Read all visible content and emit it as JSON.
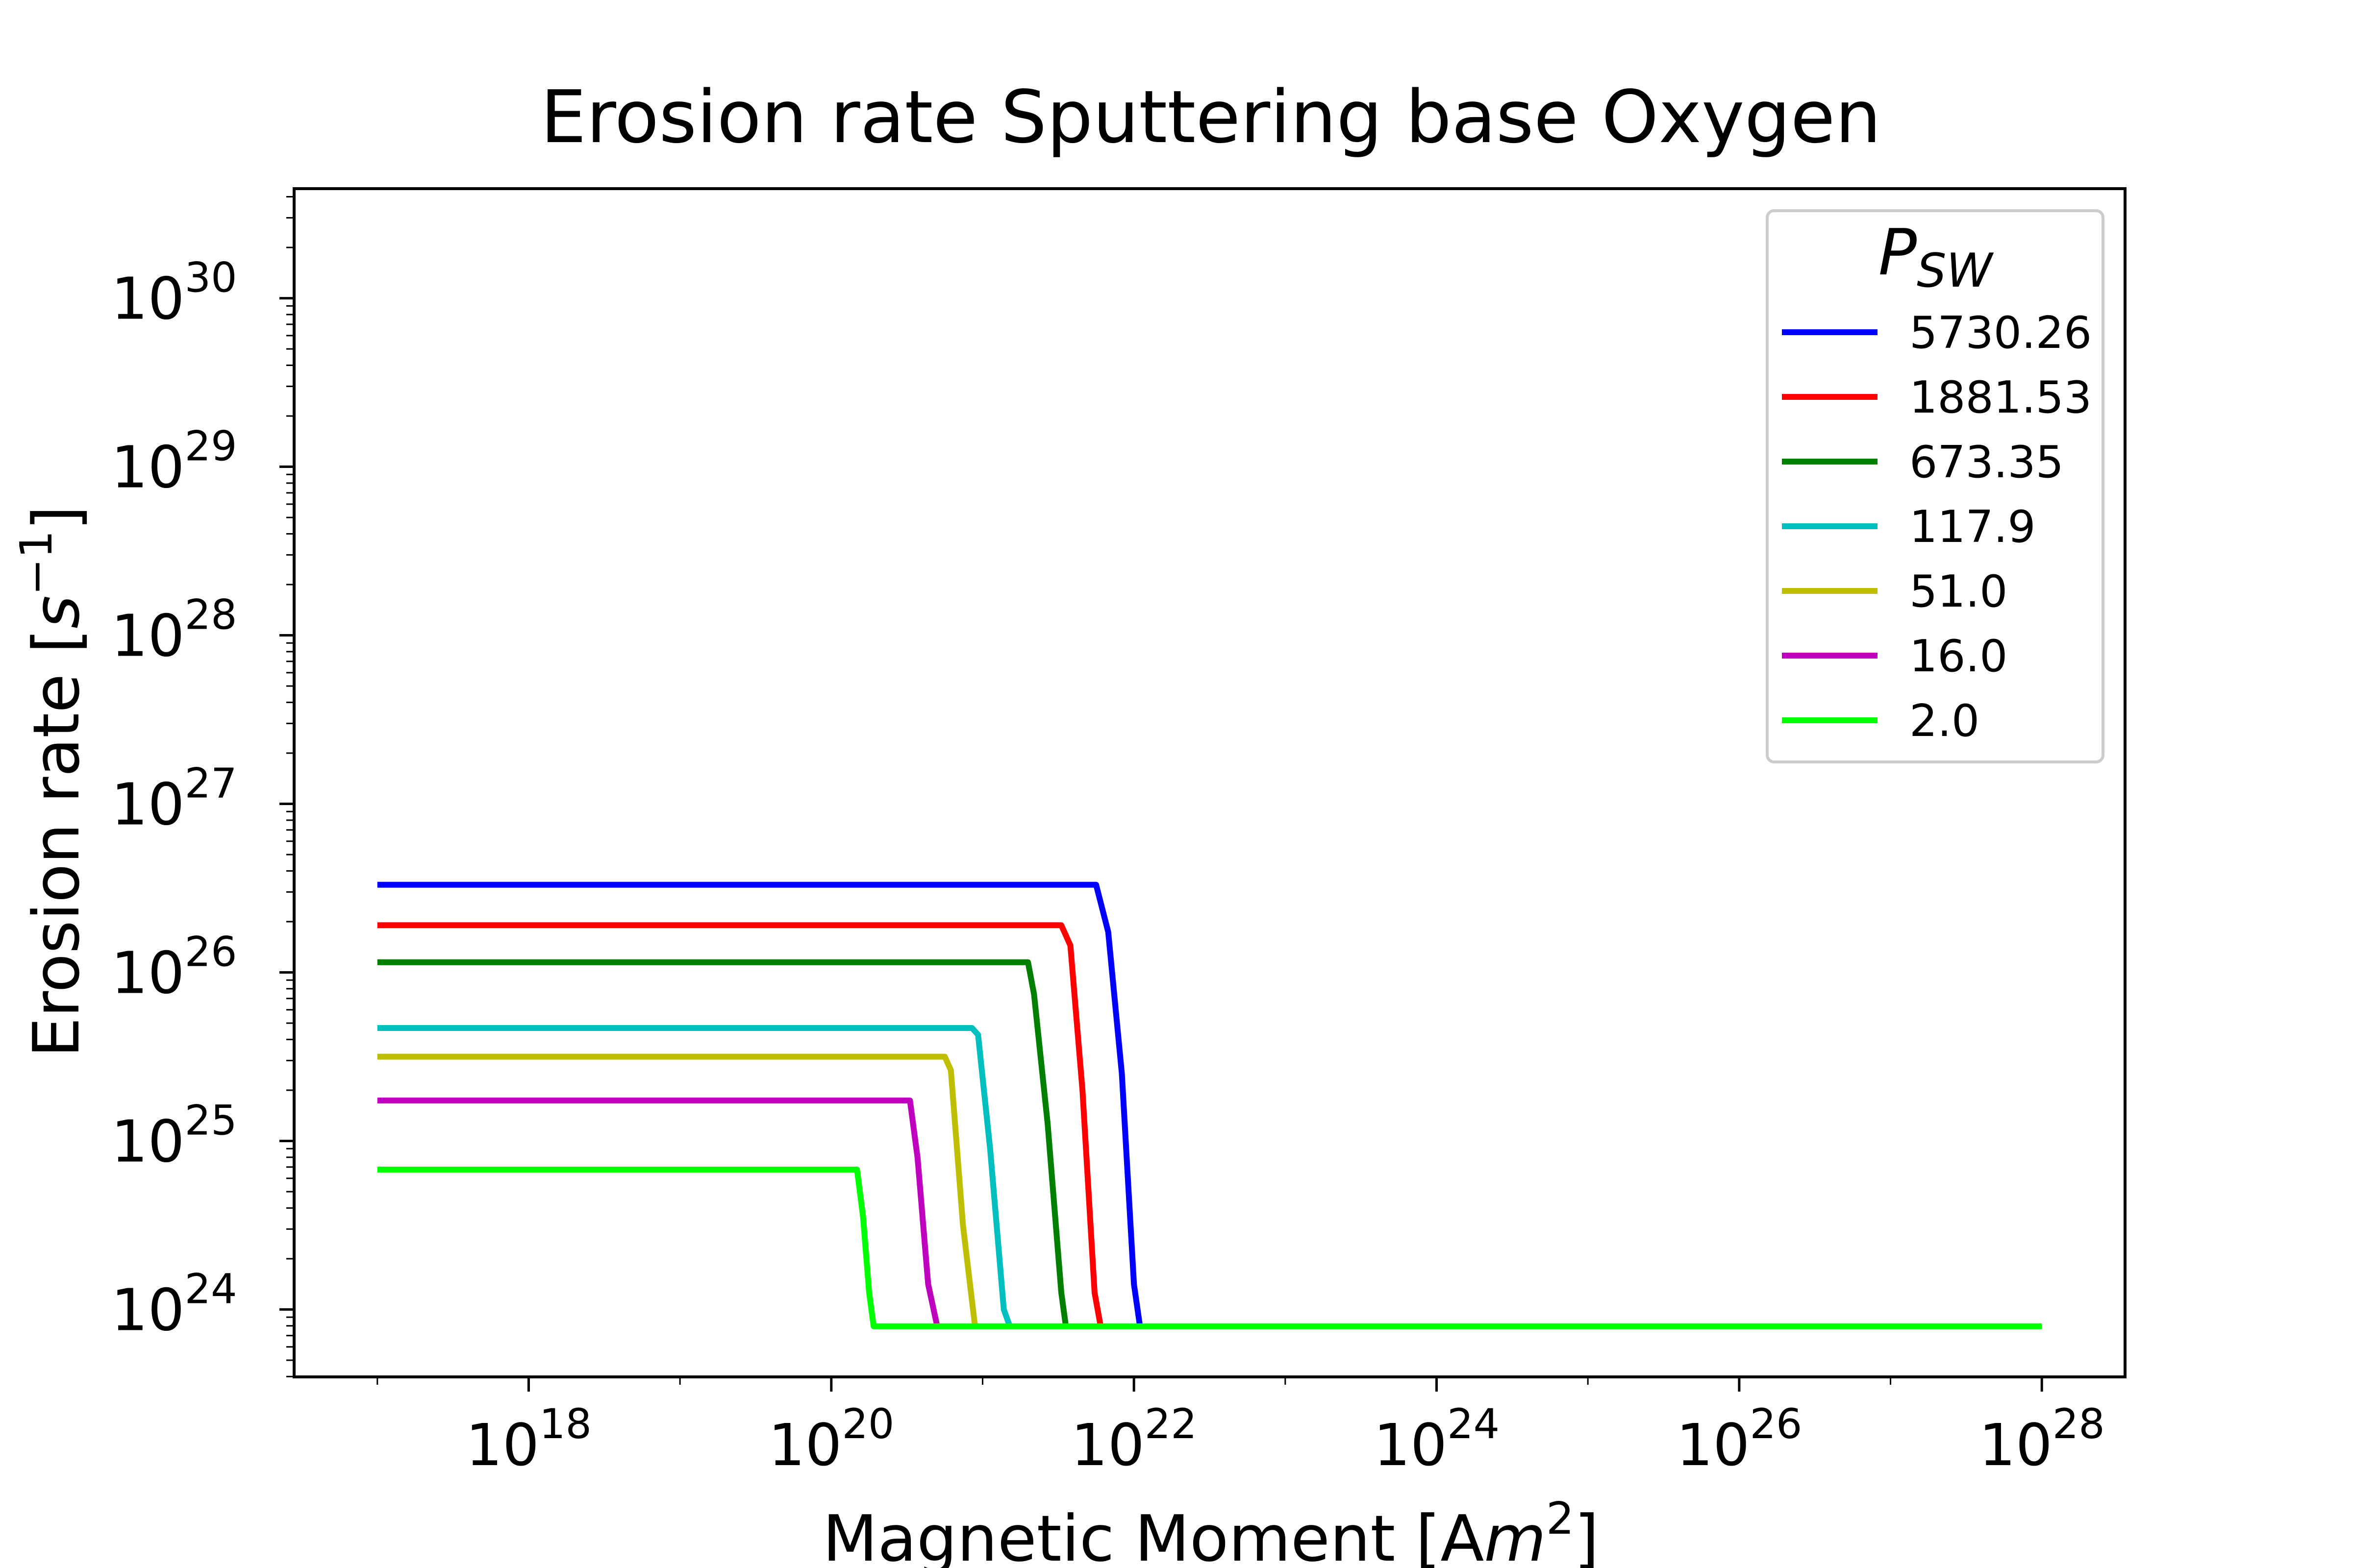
{
  "chart_data": {
    "type": "line",
    "title": "Erosion rate Sputtering base Oxygen",
    "xlabel": {
      "text": "Magnetic Moment [A",
      "var": "m",
      "exp": "2",
      "close": "]"
    },
    "ylabel": {
      "text": "Erosion rate [",
      "var": "s",
      "exp": "−1",
      "close": "]"
    },
    "xscale": "log",
    "yscale": "log",
    "xlim_exp": [
      16.45,
      28.55
    ],
    "ylim_exp": [
      23.6,
      30.65
    ],
    "x_ticks": [
      {
        "base": "10",
        "exp": "18",
        "value_exp": 18
      },
      {
        "base": "10",
        "exp": "20",
        "value_exp": 20
      },
      {
        "base": "10",
        "exp": "22",
        "value_exp": 22
      },
      {
        "base": "10",
        "exp": "24",
        "value_exp": 24
      },
      {
        "base": "10",
        "exp": "26",
        "value_exp": 26
      },
      {
        "base": "10",
        "exp": "28",
        "value_exp": 28
      }
    ],
    "y_ticks": [
      {
        "base": "10",
        "exp": "24",
        "value_exp": 24
      },
      {
        "base": "10",
        "exp": "25",
        "value_exp": 25
      },
      {
        "base": "10",
        "exp": "26",
        "value_exp": 26
      },
      {
        "base": "10",
        "exp": "27",
        "value_exp": 27
      },
      {
        "base": "10",
        "exp": "28",
        "value_exp": 28
      },
      {
        "base": "10",
        "exp": "29",
        "value_exp": 29
      },
      {
        "base": "10",
        "exp": "30",
        "value_exp": 30
      }
    ],
    "grid": false,
    "legend": {
      "title_var": "P",
      "title_sub": "SW",
      "position": "top-right"
    },
    "series": [
      {
        "name": "5730.26",
        "color": "#0000ff",
        "x_exp": [
          17,
          21.75,
          21.83,
          21.92,
          22.0,
          22.04
        ],
        "y_exp": [
          26.52,
          26.52,
          26.24,
          25.4,
          24.15,
          23.9
        ]
      },
      {
        "name": "1881.53",
        "color": "#ff0000",
        "x_exp": [
          17,
          21.52,
          21.58,
          21.66,
          21.74,
          21.78
        ],
        "y_exp": [
          26.28,
          26.28,
          26.16,
          25.3,
          24.1,
          23.9
        ]
      },
      {
        "name": "673.35",
        "color": "#007f00",
        "x_exp": [
          17,
          21.3,
          21.34,
          21.43,
          21.52,
          21.55
        ],
        "y_exp": [
          26.06,
          26.06,
          25.87,
          25.1,
          24.1,
          23.9
        ]
      },
      {
        "name": "117.9",
        "color": "#00bfbf",
        "x_exp": [
          17,
          20.93,
          20.97,
          21.05,
          21.14,
          21.18
        ],
        "y_exp": [
          25.67,
          25.67,
          25.63,
          24.95,
          24.0,
          23.9
        ]
      },
      {
        "name": "51.0",
        "color": "#bfbf00",
        "x_exp": [
          17,
          20.75,
          20.79,
          20.87,
          20.95
        ],
        "y_exp": [
          25.5,
          25.5,
          25.42,
          24.5,
          23.9
        ]
      },
      {
        "name": "16.0",
        "color": "#bf00bf",
        "x_exp": [
          17,
          20.52,
          20.57,
          20.64,
          20.7
        ],
        "y_exp": [
          25.24,
          25.24,
          24.9,
          24.15,
          23.9
        ]
      },
      {
        "name": "2.0",
        "color": "#00ff00",
        "x_exp": [
          17,
          20.17,
          20.21,
          20.25,
          20.28,
          28.0
        ],
        "y_exp": [
          24.83,
          24.83,
          24.55,
          24.1,
          23.9,
          23.9
        ]
      }
    ]
  }
}
